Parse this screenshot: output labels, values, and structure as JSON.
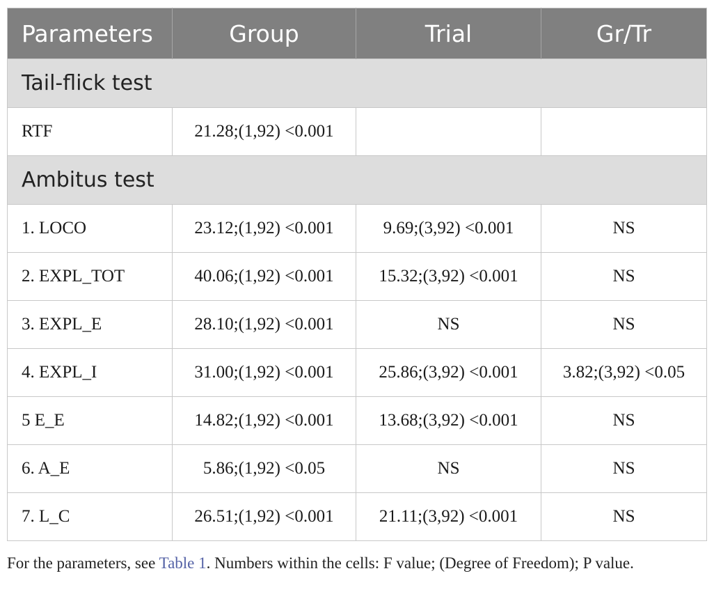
{
  "table": {
    "headers": [
      "Parameters",
      "Group",
      "Trial",
      "Gr/Tr"
    ],
    "sections": [
      {
        "title": "Tail-flick test",
        "rows": [
          {
            "param": "RTF",
            "group": "21.28;(1,92) <0.001",
            "trial": "",
            "grtr": ""
          }
        ]
      },
      {
        "title": "Ambitus test",
        "rows": [
          {
            "param": "1. LOCO",
            "group": "23.12;(1,92) <0.001",
            "trial": "9.69;(3,92) <0.001",
            "grtr": "NS"
          },
          {
            "param": "2. EXPL_TOT",
            "group": "40.06;(1,92) <0.001",
            "trial": "15.32;(3,92) <0.001",
            "grtr": "NS"
          },
          {
            "param": "3. EXPL_E",
            "group": "28.10;(1,92) <0.001",
            "trial": "NS",
            "grtr": "NS"
          },
          {
            "param": "4. EXPL_I",
            "group": "31.00;(1,92) <0.001",
            "trial": "25.86;(3,92) <0.001",
            "grtr": "3.82;(3,92) <0.05"
          },
          {
            "param": "5 E_E",
            "group": "14.82;(1,92) <0.001",
            "trial": "13.68;(3,92) <0.001",
            "grtr": "NS"
          },
          {
            "param": "6. A_E",
            "group": "5.86;(1,92) <0.05",
            "trial": "NS",
            "grtr": "NS"
          },
          {
            "param": "7. L_C",
            "group": "26.51;(1,92) <0.001",
            "trial": "21.11;(3,92) <0.001",
            "grtr": "NS"
          }
        ]
      }
    ]
  },
  "footnote": {
    "before": "For the parameters, see ",
    "link": "Table 1",
    "after": ". Numbers within the cells: F value; (Degree of Freedom); P value."
  },
  "colors": {
    "header_bg": "#808080",
    "section_bg": "#dddddd",
    "link": "#5462a6"
  }
}
